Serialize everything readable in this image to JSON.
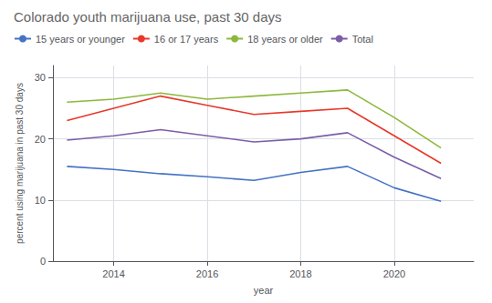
{
  "chart_data": {
    "type": "line",
    "title": "Colorado youth marijuana use, past 30 days",
    "xlabel": "year",
    "ylabel": "percent using marijuana in past 30 days",
    "x": [
      2013,
      2014,
      2015,
      2016,
      2017,
      2018,
      2019,
      2020,
      2021
    ],
    "series": [
      {
        "name": "15 years or younger",
        "color": "#4472c4",
        "values": [
          15.5,
          15.0,
          14.3,
          13.8,
          13.2,
          14.5,
          15.5,
          12.0,
          9.8
        ]
      },
      {
        "name": "16 or 17 years",
        "color": "#e8382a",
        "values": [
          23.0,
          25.0,
          27.0,
          25.5,
          24.0,
          24.5,
          25.0,
          20.5,
          16.0
        ]
      },
      {
        "name": "18 years or older",
        "color": "#8cb83c",
        "values": [
          26.0,
          26.5,
          27.5,
          26.5,
          27.0,
          27.5,
          28.0,
          23.5,
          18.5
        ]
      },
      {
        "name": "Total",
        "color": "#7b5ea7",
        "values": [
          19.8,
          20.5,
          21.5,
          20.5,
          19.5,
          20.0,
          21.0,
          17.0,
          13.5
        ]
      }
    ],
    "xlim": [
      2012.7,
      2021.7
    ],
    "xticks": [
      2014,
      2016,
      2018,
      2020
    ],
    "ylim": [
      0,
      32
    ],
    "yticks": [
      0,
      10,
      20,
      30
    ],
    "grid": true,
    "legend": "top left"
  }
}
